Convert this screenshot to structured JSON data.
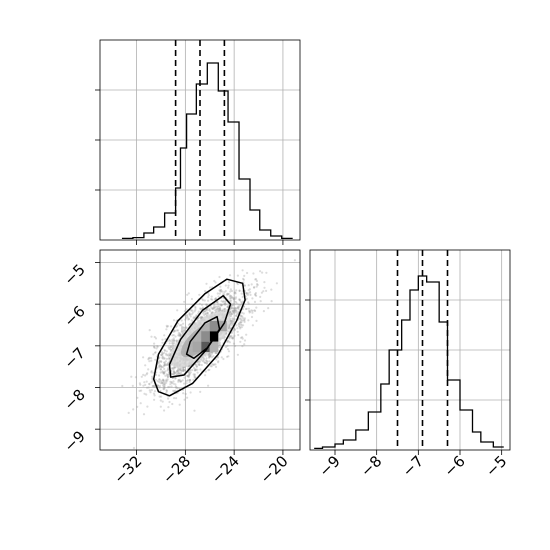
{
  "chart_data": [
    {
      "type": "histogram",
      "panel": "top",
      "title": "",
      "xlabel": "",
      "ylabel": "",
      "xlim": [
        -35,
        -18.6
      ],
      "ylim": [
        0,
        1.0
      ],
      "xticks": [
        -32,
        -28,
        -24,
        -20
      ],
      "bins": [
        {
          "x0": -33.2,
          "x1": -32.3,
          "y": 0.008
        },
        {
          "x0": -32.3,
          "x1": -31.4,
          "y": 0.012
        },
        {
          "x0": -31.4,
          "x1": -30.6,
          "y": 0.035
        },
        {
          "x0": -30.6,
          "x1": -29.7,
          "y": 0.065
        },
        {
          "x0": -29.7,
          "x1": -28.8,
          "y": 0.135
        },
        {
          "x0": -28.8,
          "x1": -28.4,
          "y": 0.26
        },
        {
          "x0": -28.4,
          "x1": -27.9,
          "y": 0.46
        },
        {
          "x0": -27.9,
          "x1": -27.1,
          "y": 0.63
        },
        {
          "x0": -27.1,
          "x1": -26.2,
          "y": 0.78
        },
        {
          "x0": -26.2,
          "x1": -25.3,
          "y": 0.885
        },
        {
          "x0": -25.3,
          "x1": -24.5,
          "y": 0.745
        },
        {
          "x0": -24.5,
          "x1": -23.6,
          "y": 0.59
        },
        {
          "x0": -23.6,
          "x1": -22.7,
          "y": 0.305
        },
        {
          "x0": -22.7,
          "x1": -21.9,
          "y": 0.15
        },
        {
          "x0": -21.9,
          "x1": -21.0,
          "y": 0.05
        },
        {
          "x0": -21.0,
          "x1": -20.1,
          "y": 0.02
        },
        {
          "x0": -20.1,
          "x1": -19.2,
          "y": 0.008
        }
      ],
      "quantile_lines": [
        -28.8,
        -26.8,
        -24.8
      ]
    },
    {
      "type": "histogram",
      "panel": "right",
      "title": "",
      "xlabel": "",
      "ylabel": "",
      "xlim": [
        -9.6,
        -4.8
      ],
      "ylim": [
        0,
        1.0
      ],
      "xticks": [
        -9,
        -8,
        -7,
        -6,
        -5
      ],
      "bins": [
        {
          "x0": -9.5,
          "x1": -9.3,
          "y": 0.008
        },
        {
          "x0": -9.3,
          "x1": -9.0,
          "y": 0.015
        },
        {
          "x0": -9.0,
          "x1": -8.8,
          "y": 0.03
        },
        {
          "x0": -8.8,
          "x1": -8.5,
          "y": 0.05
        },
        {
          "x0": -8.5,
          "x1": -8.2,
          "y": 0.1
        },
        {
          "x0": -8.2,
          "x1": -7.9,
          "y": 0.19
        },
        {
          "x0": -7.9,
          "x1": -7.7,
          "y": 0.33
        },
        {
          "x0": -7.7,
          "x1": -7.4,
          "y": 0.5
        },
        {
          "x0": -7.4,
          "x1": -7.2,
          "y": 0.65
        },
        {
          "x0": -7.2,
          "x1": -7.0,
          "y": 0.8
        },
        {
          "x0": -7.0,
          "x1": -6.8,
          "y": 0.87
        },
        {
          "x0": -6.8,
          "x1": -6.5,
          "y": 0.84
        },
        {
          "x0": -6.5,
          "x1": -6.3,
          "y": 0.64
        },
        {
          "x0": -6.3,
          "x1": -6.0,
          "y": 0.35
        },
        {
          "x0": -6.0,
          "x1": -5.7,
          "y": 0.2
        },
        {
          "x0": -5.7,
          "x1": -5.5,
          "y": 0.09
        },
        {
          "x0": -5.5,
          "x1": -5.2,
          "y": 0.04
        },
        {
          "x0": -5.2,
          "x1": -4.95,
          "y": 0.015
        }
      ],
      "quantile_lines": [
        -7.5,
        -6.9,
        -6.3
      ]
    },
    {
      "type": "scatter",
      "panel": "bottom-left",
      "subtype": "2d-density-contour",
      "title": "",
      "xlabel": "",
      "ylabel": "",
      "xlim": [
        -35,
        -18.6
      ],
      "ylim": [
        -9.5,
        -4.7
      ],
      "xticks": [
        -32,
        -28,
        -24,
        -20
      ],
      "yticks": [
        -5,
        -6,
        -7,
        -8,
        -9
      ],
      "center": {
        "x": -26.8,
        "y": -6.85
      },
      "density_cells": [
        {
          "x0": -26.0,
          "x1": -25.3,
          "y0": -6.9,
          "y1": -6.65,
          "level": 1.0
        },
        {
          "x0": -26.7,
          "x1": -26.0,
          "y0": -7.15,
          "y1": -6.9,
          "level": 0.65
        },
        {
          "x0": -26.7,
          "x1": -26.0,
          "y0": -6.9,
          "y1": -6.65,
          "level": 0.45
        },
        {
          "x0": -26.0,
          "x1": -25.3,
          "y0": -6.65,
          "y1": -6.4,
          "level": 0.45
        },
        {
          "x0": -25.3,
          "x1": -24.6,
          "y0": -6.65,
          "y1": -6.4,
          "level": 0.35
        },
        {
          "x0": -27.4,
          "x1": -26.7,
          "y0": -7.15,
          "y1": -6.9,
          "level": 0.35
        },
        {
          "x0": -26.0,
          "x1": -25.3,
          "y0": -7.15,
          "y1": -6.9,
          "level": 0.3
        }
      ],
      "contours": [
        {
          "level": "outer",
          "points": [
            [
              -30.2,
              -8.1
            ],
            [
              -30.6,
              -7.8
            ],
            [
              -30.2,
              -7.2
            ],
            [
              -28.6,
              -6.4
            ],
            [
              -26.4,
              -5.75
            ],
            [
              -24.6,
              -5.4
            ],
            [
              -23.3,
              -5.5
            ],
            [
              -23.1,
              -5.9
            ],
            [
              -23.8,
              -6.4
            ],
            [
              -25.3,
              -7.2
            ],
            [
              -27.4,
              -7.9
            ],
            [
              -29.3,
              -8.2
            ]
          ]
        },
        {
          "level": "middle",
          "points": [
            [
              -29.2,
              -7.75
            ],
            [
              -29.3,
              -7.45
            ],
            [
              -28.4,
              -6.85
            ],
            [
              -26.6,
              -6.15
            ],
            [
              -24.9,
              -5.8
            ],
            [
              -24.3,
              -6.0
            ],
            [
              -24.8,
              -6.45
            ],
            [
              -26.3,
              -7.1
            ],
            [
              -28.1,
              -7.7
            ]
          ]
        },
        {
          "level": "inner",
          "points": [
            [
              -27.9,
              -7.2
            ],
            [
              -27.6,
              -6.9
            ],
            [
              -26.4,
              -6.45
            ],
            [
              -25.4,
              -6.3
            ],
            [
              -25.2,
              -6.6
            ],
            [
              -26.2,
              -7.05
            ],
            [
              -27.3,
              -7.3
            ]
          ]
        }
      ]
    }
  ]
}
